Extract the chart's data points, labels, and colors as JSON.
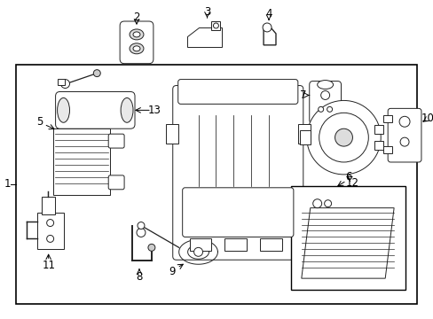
{
  "bg_color": "#ffffff",
  "line_color": "#222222",
  "label_color": "#000000",
  "font_size": 8.5,
  "label_font_size": 7.5,
  "figsize": [
    4.89,
    3.6
  ],
  "dpi": 100
}
